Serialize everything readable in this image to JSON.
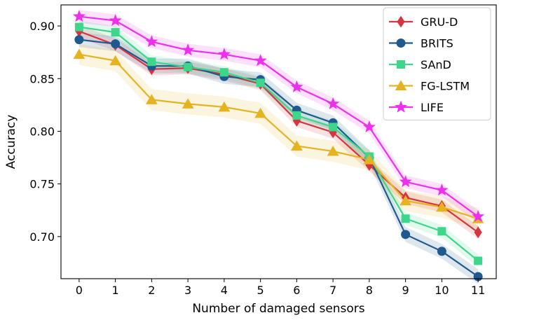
{
  "chart_data": {
    "type": "line",
    "xlabel": "Number of damaged sensors",
    "ylabel": "Accuracy",
    "x": [
      0,
      1,
      2,
      3,
      4,
      5,
      6,
      7,
      8,
      9,
      10,
      11
    ],
    "x_tick_labels": [
      "0",
      "1",
      "2",
      "3",
      "4",
      "5",
      "6",
      "7",
      "8",
      "9",
      "10",
      "11"
    ],
    "xlim": [
      -0.5,
      11.5
    ],
    "ylim": [
      0.66,
      0.92
    ],
    "y_ticks": [
      0.7,
      0.75,
      0.8,
      0.85,
      0.9
    ],
    "y_tick_labels": [
      "0.70",
      "0.75",
      "0.80",
      "0.85",
      "0.90"
    ],
    "grid": false,
    "legend_position": "top-right",
    "shaded_bands": true,
    "series": [
      {
        "name": "GRU-D",
        "color": "#d7343f",
        "marker": "diamond",
        "values": [
          0.895,
          0.882,
          0.859,
          0.86,
          0.854,
          0.845,
          0.81,
          0.799,
          0.768,
          0.737,
          0.729,
          0.704
        ],
        "band": 0.006
      },
      {
        "name": "BRITS",
        "color": "#1f5a8f",
        "marker": "circle",
        "values": [
          0.887,
          0.883,
          0.862,
          0.862,
          0.852,
          0.849,
          0.82,
          0.808,
          0.775,
          0.702,
          0.686,
          0.662
        ],
        "band": 0.007
      },
      {
        "name": "SAnD",
        "color": "#3dd68a",
        "marker": "square",
        "values": [
          0.899,
          0.894,
          0.866,
          0.861,
          0.856,
          0.846,
          0.815,
          0.804,
          0.776,
          0.717,
          0.705,
          0.677
        ],
        "band": 0.006
      },
      {
        "name": "FG-LSTM",
        "color": "#e6b320",
        "marker": "triangle",
        "values": [
          0.873,
          0.867,
          0.83,
          0.826,
          0.823,
          0.817,
          0.786,
          0.781,
          0.773,
          0.734,
          0.728,
          0.717
        ],
        "band": 0.01
      },
      {
        "name": "LIFE",
        "color": "#ee2fee",
        "marker": "star",
        "values": [
          0.909,
          0.905,
          0.885,
          0.877,
          0.873,
          0.867,
          0.842,
          0.826,
          0.804,
          0.752,
          0.744,
          0.719
        ],
        "band": 0.006
      }
    ]
  }
}
